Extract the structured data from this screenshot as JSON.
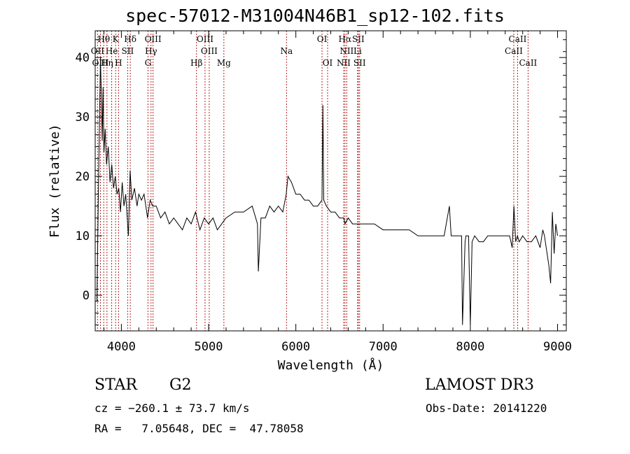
{
  "title": "spec-57012-M31004N46B1_sp12-102.fits",
  "footer": {
    "class": "STAR",
    "subclass": "G2",
    "survey": "LAMOST DR3",
    "cz": "cz = −260.1 ± 73.7 km/s",
    "obs_date": "Obs-Date: 20141220",
    "radec": "RA =   7.05648, DEC =  47.78058"
  },
  "colors": {
    "spectrum": "#000000",
    "lines": "#b22222",
    "axes": "#000000"
  },
  "chart_data": {
    "type": "line",
    "xlabel": "Wavelength (Å)",
    "ylabel": "Flux (relative)",
    "xlim": [
      3700,
      9100
    ],
    "ylim": [
      -6,
      44.5
    ],
    "xticks": [
      4000,
      5000,
      6000,
      7000,
      8000,
      9000
    ],
    "yticks": [
      0,
      10,
      20,
      30,
      40
    ],
    "series": [
      {
        "x": [
          3720,
          3735,
          3750,
          3760,
          3770,
          3780,
          3790,
          3800,
          3815,
          3830,
          3850,
          3870,
          3890,
          3910,
          3930,
          3950,
          3970,
          3990,
          4010,
          4030,
          4050,
          4080,
          4100,
          4120,
          4150,
          4180,
          4200,
          4230,
          4260,
          4300,
          4330,
          4360,
          4400,
          4450,
          4500,
          4550,
          4600,
          4650,
          4700,
          4750,
          4800,
          4850,
          4900,
          4950,
          5000,
          5050,
          5100,
          5150,
          5200,
          5300,
          5400,
          5500,
          5560,
          5570,
          5600,
          5650,
          5700,
          5750,
          5800,
          5850,
          5890,
          5910,
          5950,
          6000,
          6050,
          6100,
          6150,
          6200,
          6250,
          6300,
          6310,
          6320,
          6350,
          6400,
          6450,
          6500,
          6550,
          6563,
          6600,
          6650,
          6700,
          6750,
          6800,
          6900,
          7000,
          7100,
          7200,
          7300,
          7400,
          7500,
          7600,
          7700,
          7760,
          7780,
          7800,
          7850,
          7900,
          7910,
          7940,
          7950,
          7980,
          8000,
          8020,
          8050,
          8100,
          8150,
          8200,
          8300,
          8400,
          8450,
          8480,
          8500,
          8520,
          8540,
          8560,
          8600,
          8650,
          8700,
          8750,
          8800,
          8830,
          8850,
          8870,
          8900,
          8920,
          8940,
          8960,
          8980,
          9000
        ],
        "y": [
          -1,
          16,
          30,
          40,
          34,
          26,
          35,
          24,
          28,
          22,
          25,
          19,
          22,
          18,
          20,
          17,
          18,
          14,
          19,
          15,
          17,
          10,
          21,
          16,
          18,
          15,
          17,
          16,
          17,
          13,
          16,
          15,
          15,
          13,
          14,
          12,
          13,
          12,
          11,
          13,
          12,
          14,
          11,
          13,
          12,
          13,
          11,
          12,
          13,
          14,
          14,
          15,
          12,
          4,
          13,
          13,
          15,
          14,
          15,
          14,
          17,
          20,
          19,
          17,
          17,
          16,
          16,
          15,
          15,
          16,
          32,
          16,
          15,
          14,
          14,
          13,
          13,
          12,
          13,
          12,
          12,
          12,
          12,
          12,
          11,
          11,
          11,
          11,
          10,
          10,
          10,
          10,
          15,
          10,
          10,
          10,
          10,
          -5,
          9,
          10,
          10,
          -5,
          9,
          10,
          9,
          9,
          10,
          10,
          10,
          10,
          8,
          15,
          9,
          10,
          9,
          10,
          9,
          9,
          10,
          8,
          11,
          10,
          8,
          5,
          2,
          14,
          7,
          12,
          10
        ]
      }
    ],
    "lines": [
      {
        "name": "Hθ",
        "wl": 3798,
        "row": 0
      },
      {
        "name": "K",
        "wl": 3934,
        "row": 0
      },
      {
        "name": "Hδ",
        "wl": 4102,
        "row": 0
      },
      {
        "name": "OIII",
        "wl": 4363,
        "row": 0
      },
      {
        "name": "OIII",
        "wl": 4959,
        "row": 0
      },
      {
        "name": "OI",
        "wl": 6300,
        "row": 0
      },
      {
        "name": "Hα",
        "wl": 6563,
        "row": 0
      },
      {
        "name": "SII",
        "wl": 6716,
        "row": 0
      },
      {
        "name": "CaII",
        "wl": 8542,
        "row": 0
      },
      {
        "name": "OII",
        "wl": 3727,
        "row": 1
      },
      {
        "name": "He",
        "wl": 3889,
        "row": 1
      },
      {
        "name": "SII",
        "wl": 4072,
        "row": 1
      },
      {
        "name": "Hγ",
        "wl": 4340,
        "row": 1
      },
      {
        "name": "OIII",
        "wl": 5007,
        "row": 1
      },
      {
        "name": "Na",
        "wl": 5893,
        "row": 1
      },
      {
        "name": "NII",
        "wl": 6583,
        "row": 1
      },
      {
        "name": "Li",
        "wl": 6708,
        "row": 1
      },
      {
        "name": "CaII",
        "wl": 8498,
        "row": 1
      },
      {
        "name": "OIII",
        "wl": 3760,
        "row": 2
      },
      {
        "name": "Hη",
        "wl": 3835,
        "row": 2
      },
      {
        "name": "H",
        "wl": 3968,
        "row": 2
      },
      {
        "name": "G",
        "wl": 4305,
        "row": 2
      },
      {
        "name": "Hβ",
        "wl": 4861,
        "row": 2
      },
      {
        "name": "Mg",
        "wl": 5175,
        "row": 2
      },
      {
        "name": "OI",
        "wl": 6364,
        "row": 2
      },
      {
        "name": "NII",
        "wl": 6548,
        "row": 2
      },
      {
        "name": "SII",
        "wl": 6731,
        "row": 2
      },
      {
        "name": "CaII",
        "wl": 8662,
        "row": 2
      }
    ]
  }
}
